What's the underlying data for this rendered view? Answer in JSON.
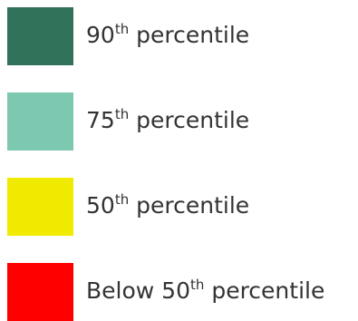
{
  "legend": {
    "items": [
      {
        "prefix": "90",
        "sup": "th",
        "suffix": " percentile",
        "color": "#31725a"
      },
      {
        "prefix": "75",
        "sup": "th",
        "suffix": " percentile",
        "color": "#7cc8b0"
      },
      {
        "prefix": "50",
        "sup": "th",
        "suffix": " percentile",
        "color": "#f0ea00"
      },
      {
        "prefix": "Below 50",
        "sup": "th",
        "suffix": " percentile",
        "color": "#ff0000"
      }
    ]
  }
}
